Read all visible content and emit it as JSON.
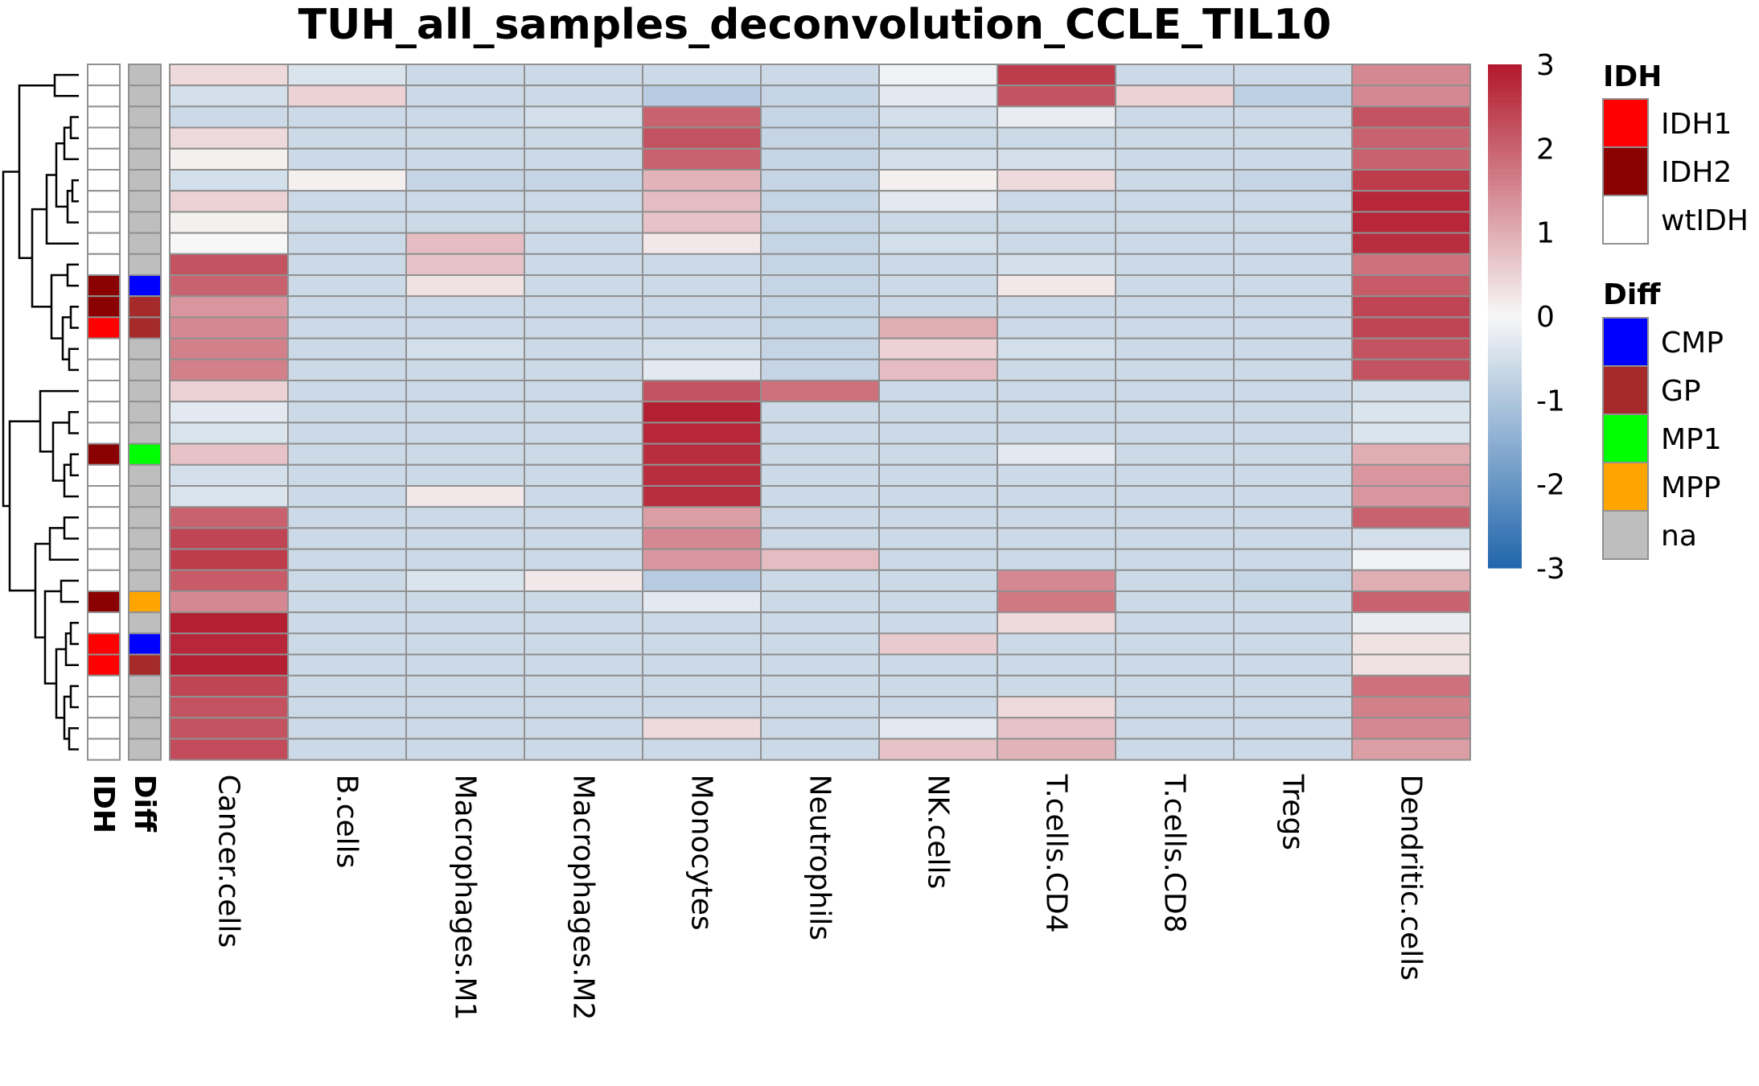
{
  "chart_data": {
    "type": "heatmap",
    "title": "TUH_all_samples_deconvolution_CCLE_TIL10",
    "columns": [
      "Cancer.cells",
      "B.cells",
      "Macrophages.M1",
      "Macrophages.M2",
      "Monocytes",
      "Neutrophils",
      "NK.cells",
      "T.cells.CD4",
      "T.cells.CD8",
      "Tregs",
      "Dendritic.cells"
    ],
    "values": [
      [
        0.4,
        -0.4,
        -0.6,
        -0.6,
        -0.6,
        -0.6,
        -0.1,
        2.5,
        -0.6,
        -0.6,
        1.5
      ],
      [
        -0.5,
        0.5,
        -0.6,
        -0.6,
        -0.9,
        -0.7,
        -0.3,
        2.2,
        0.5,
        -0.8,
        1.5
      ],
      [
        -0.6,
        -0.6,
        -0.6,
        -0.5,
        2.0,
        -0.7,
        -0.5,
        -0.2,
        -0.6,
        -0.6,
        2.2
      ],
      [
        0.4,
        -0.6,
        -0.6,
        -0.6,
        2.2,
        -0.7,
        -0.6,
        -0.6,
        -0.6,
        -0.6,
        2.0
      ],
      [
        0.1,
        -0.6,
        -0.6,
        -0.6,
        2.0,
        -0.7,
        -0.5,
        -0.5,
        -0.6,
        -0.6,
        2.0
      ],
      [
        -0.5,
        0.1,
        -0.7,
        -0.7,
        0.9,
        -0.7,
        0.1,
        0.4,
        -0.6,
        -0.7,
        2.5
      ],
      [
        0.5,
        -0.6,
        -0.6,
        -0.6,
        0.8,
        -0.7,
        -0.3,
        -0.6,
        -0.6,
        -0.6,
        2.8
      ],
      [
        0.1,
        -0.6,
        -0.6,
        -0.6,
        0.7,
        -0.7,
        -0.6,
        -0.6,
        -0.6,
        -0.6,
        2.8
      ],
      [
        0.0,
        -0.6,
        0.8,
        -0.6,
        0.2,
        -0.7,
        -0.5,
        -0.6,
        -0.6,
        -0.6,
        2.7
      ],
      [
        2.2,
        -0.6,
        0.7,
        -0.6,
        -0.6,
        -0.7,
        -0.6,
        -0.5,
        -0.6,
        -0.6,
        1.8
      ],
      [
        2.0,
        -0.6,
        0.3,
        -0.6,
        -0.6,
        -0.7,
        -0.6,
        0.2,
        -0.6,
        -0.6,
        2.1
      ],
      [
        1.3,
        -0.6,
        -0.6,
        -0.6,
        -0.6,
        -0.7,
        -0.6,
        -0.6,
        -0.6,
        -0.6,
        2.4
      ],
      [
        1.5,
        -0.6,
        -0.6,
        -0.6,
        -0.6,
        -0.7,
        1.0,
        -0.6,
        -0.6,
        -0.6,
        2.4
      ],
      [
        1.6,
        -0.6,
        -0.5,
        -0.6,
        -0.5,
        -0.7,
        0.5,
        -0.5,
        -0.6,
        -0.6,
        2.2
      ],
      [
        1.6,
        -0.6,
        -0.6,
        -0.6,
        -0.3,
        -0.7,
        0.8,
        -0.6,
        -0.6,
        -0.6,
        2.2
      ],
      [
        0.5,
        -0.6,
        -0.6,
        -0.6,
        2.2,
        1.8,
        -0.6,
        -0.6,
        -0.6,
        -0.6,
        -0.5
      ],
      [
        -0.3,
        -0.6,
        -0.6,
        -0.6,
        2.9,
        -0.6,
        -0.6,
        -0.6,
        -0.6,
        -0.6,
        -0.4
      ],
      [
        -0.4,
        -0.6,
        -0.6,
        -0.6,
        2.8,
        -0.6,
        -0.6,
        -0.6,
        -0.6,
        -0.6,
        -0.4
      ],
      [
        0.7,
        -0.6,
        -0.6,
        -0.6,
        2.7,
        -0.6,
        -0.6,
        -0.3,
        -0.6,
        -0.6,
        1.0
      ],
      [
        -0.5,
        -0.6,
        -0.6,
        -0.6,
        2.7,
        -0.6,
        -0.6,
        -0.6,
        -0.6,
        -0.6,
        1.3
      ],
      [
        -0.4,
        -0.6,
        0.2,
        -0.6,
        2.7,
        -0.6,
        -0.6,
        -0.6,
        -0.6,
        -0.6,
        1.3
      ],
      [
        2.0,
        -0.6,
        -0.6,
        -0.6,
        1.2,
        -0.6,
        -0.6,
        -0.6,
        -0.6,
        -0.6,
        2.0
      ],
      [
        2.4,
        -0.6,
        -0.6,
        -0.6,
        1.5,
        -0.6,
        -0.6,
        -0.6,
        -0.6,
        -0.6,
        -0.5
      ],
      [
        2.5,
        -0.6,
        -0.6,
        -0.6,
        1.3,
        0.8,
        -0.6,
        -0.6,
        -0.6,
        -0.6,
        -0.1
      ],
      [
        2.1,
        -0.6,
        -0.4,
        0.2,
        -0.9,
        -0.6,
        -0.6,
        1.5,
        -0.6,
        -0.7,
        1.0
      ],
      [
        1.5,
        -0.6,
        -0.6,
        -0.6,
        -0.3,
        -0.6,
        -0.6,
        1.7,
        -0.6,
        -0.6,
        2.0
      ],
      [
        2.9,
        -0.6,
        -0.6,
        -0.6,
        -0.6,
        -0.6,
        -0.6,
        0.4,
        -0.6,
        -0.6,
        -0.2
      ],
      [
        2.8,
        -0.6,
        -0.6,
        -0.6,
        -0.6,
        -0.6,
        0.6,
        -0.6,
        -0.6,
        -0.6,
        0.3
      ],
      [
        2.9,
        -0.6,
        -0.6,
        -0.6,
        -0.6,
        -0.6,
        -0.6,
        -0.6,
        -0.6,
        -0.6,
        0.3
      ],
      [
        2.4,
        -0.6,
        -0.6,
        -0.6,
        -0.6,
        -0.6,
        -0.6,
        -0.6,
        -0.6,
        -0.6,
        1.8
      ],
      [
        2.2,
        -0.6,
        -0.6,
        -0.6,
        -0.6,
        -0.6,
        -0.6,
        0.4,
        -0.6,
        -0.6,
        1.6
      ],
      [
        2.2,
        -0.6,
        -0.6,
        -0.6,
        0.4,
        -0.6,
        -0.3,
        0.7,
        -0.6,
        -0.6,
        1.5
      ],
      [
        2.3,
        -0.6,
        -0.6,
        -0.6,
        -0.6,
        -0.6,
        0.7,
        0.9,
        -0.6,
        -0.6,
        1.2
      ]
    ],
    "row_annotations": {
      "IDH": [
        "wtIDH",
        "wtIDH",
        "wtIDH",
        "wtIDH",
        "wtIDH",
        "wtIDH",
        "wtIDH",
        "wtIDH",
        "wtIDH",
        "wtIDH",
        "IDH2",
        "IDH2",
        "IDH1",
        "wtIDH",
        "wtIDH",
        "wtIDH",
        "wtIDH",
        "wtIDH",
        "IDH2",
        "wtIDH",
        "wtIDH",
        "wtIDH",
        "wtIDH",
        "wtIDH",
        "wtIDH",
        "IDH2",
        "wtIDH",
        "IDH1",
        "IDH1",
        "wtIDH",
        "wtIDH",
        "wtIDH",
        "wtIDH"
      ],
      "Diff": [
        "na",
        "na",
        "na",
        "na",
        "na",
        "na",
        "na",
        "na",
        "na",
        "na",
        "CMP",
        "GP",
        "GP",
        "na",
        "na",
        "na",
        "na",
        "na",
        "MP1",
        "na",
        "na",
        "na",
        "na",
        "na",
        "na",
        "MPP",
        "na",
        "CMP",
        "GP",
        "na",
        "na",
        "na",
        "na"
      ]
    },
    "annotation_labels": [
      "IDH",
      "Diff"
    ],
    "color_scale": {
      "range": [
        -3,
        3
      ],
      "ticks": [
        "3",
        "2",
        "1",
        "0",
        "-1",
        "-2",
        "-3"
      ],
      "tick_values": [
        3,
        2,
        1,
        0,
        -1,
        -2,
        -3
      ],
      "low": "#2166ac",
      "mid": "#f7f7f7",
      "high": "#b2182b"
    },
    "cell_border_color": "#909090",
    "dendrogram": "left, row clustering"
  },
  "legend": {
    "idh": {
      "title": "IDH",
      "items": [
        {
          "label": "IDH1",
          "color": "#ff0000"
        },
        {
          "label": "IDH2",
          "color": "#8b0000"
        },
        {
          "label": "wtIDH",
          "color": "#ffffff"
        }
      ]
    },
    "diff": {
      "title": "Diff",
      "items": [
        {
          "label": "CMP",
          "color": "#0000ff"
        },
        {
          "label": "GP",
          "color": "#a52a2a"
        },
        {
          "label": "MP1",
          "color": "#00ff00"
        },
        {
          "label": "MPP",
          "color": "#ffa500"
        },
        {
          "label": "na",
          "color": "#bebebe"
        }
      ]
    }
  }
}
